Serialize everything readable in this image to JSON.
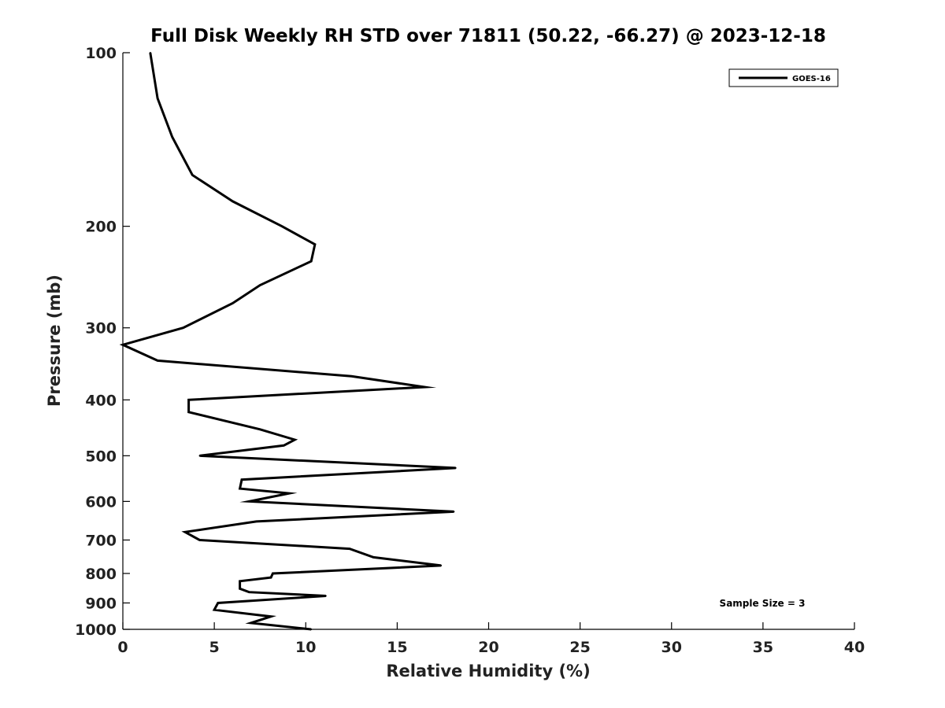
{
  "chart_data": {
    "type": "line",
    "title": "Full Disk Weekly RH STD over 71811 (50.22, -66.27) @ 2023-12-18",
    "xlabel": "Relative Humidity (%)",
    "ylabel": "Pressure (mb)",
    "xlim": [
      0,
      40
    ],
    "ylim": [
      100,
      1000
    ],
    "y_scale": "log",
    "y_inverted": true,
    "x_ticks": [
      0,
      5,
      10,
      15,
      20,
      25,
      30,
      35,
      40
    ],
    "y_ticks": [
      100,
      200,
      300,
      400,
      500,
      600,
      700,
      800,
      900,
      1000
    ],
    "grid": false,
    "legend": {
      "position": "top-right",
      "entries": [
        "GOES-16"
      ]
    },
    "annotation": "Sample Size = 3",
    "series": [
      {
        "name": "GOES-16",
        "color": "#000000",
        "points": [
          [
            1.5,
            100
          ],
          [
            1.9,
            120
          ],
          [
            2.7,
            140
          ],
          [
            3.8,
            163
          ],
          [
            6.0,
            181
          ],
          [
            8.7,
            200
          ],
          [
            10.5,
            215
          ],
          [
            10.3,
            230
          ],
          [
            7.5,
            253
          ],
          [
            6.0,
            272
          ],
          [
            3.3,
            300
          ],
          [
            0.0,
            321
          ],
          [
            1.9,
            342
          ],
          [
            12.5,
            364
          ],
          [
            16.5,
            380
          ],
          [
            3.6,
            400
          ],
          [
            3.6,
            420
          ],
          [
            7.5,
            450
          ],
          [
            9.4,
            469
          ],
          [
            8.8,
            480
          ],
          [
            4.2,
            500
          ],
          [
            18.2,
            525
          ],
          [
            6.5,
            550
          ],
          [
            6.4,
            570
          ],
          [
            9.1,
            581
          ],
          [
            6.9,
            600
          ],
          [
            18.1,
            625
          ],
          [
            7.3,
            650
          ],
          [
            3.4,
            678
          ],
          [
            4.2,
            700
          ],
          [
            12.4,
            725
          ],
          [
            13.7,
            750
          ],
          [
            17.4,
            775
          ],
          [
            8.2,
            800
          ],
          [
            8.1,
            813
          ],
          [
            6.4,
            825
          ],
          [
            6.4,
            850
          ],
          [
            6.9,
            862
          ],
          [
            11.1,
            875
          ],
          [
            5.2,
            900
          ],
          [
            5.0,
            925
          ],
          [
            8.1,
            950
          ],
          [
            7.0,
            975
          ],
          [
            10.3,
            1000
          ]
        ]
      }
    ]
  }
}
